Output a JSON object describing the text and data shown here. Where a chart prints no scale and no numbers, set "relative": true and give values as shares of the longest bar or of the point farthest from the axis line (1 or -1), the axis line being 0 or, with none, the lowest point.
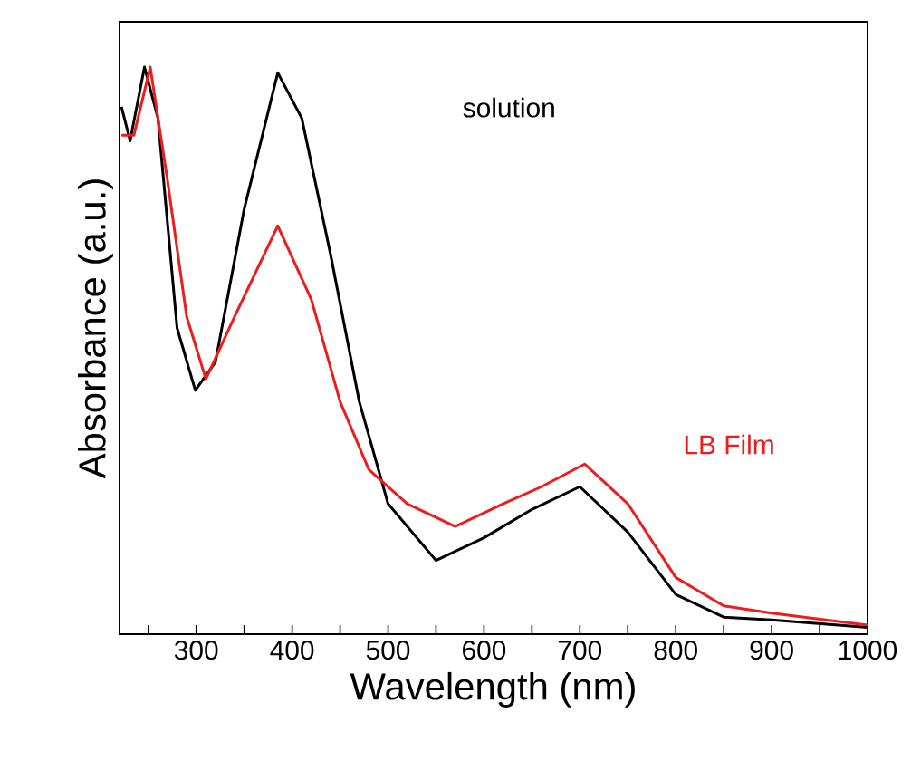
{
  "chart_data": {
    "type": "line",
    "relative": true,
    "xlabel": "Wavelength (nm)",
    "ylabel": "Absorbance (a.u.)",
    "xlim": [
      220,
      1000
    ],
    "xticks": [
      {
        "value": 250,
        "label": null
      },
      300,
      {
        "value": 350,
        "label": null
      },
      400,
      {
        "value": 450,
        "label": null
      },
      500,
      {
        "value": 550,
        "label": null
      },
      600,
      {
        "value": 650,
        "label": null
      },
      700,
      {
        "value": 750,
        "label": null
      },
      800,
      {
        "value": 850,
        "label": null
      },
      900,
      {
        "value": 950,
        "label": null
      },
      1000
    ],
    "series": [
      {
        "name": "solution",
        "color": "#000000",
        "x": [
          222,
          231,
          246,
          260,
          280,
          299,
          320,
          350,
          385,
          410,
          440,
          470,
          500,
          550,
          600,
          650,
          700,
          750,
          800,
          850,
          900,
          1000
        ],
        "values": [
          0.93,
          0.87,
          1.0,
          0.91,
          0.54,
          0.43,
          0.48,
          0.75,
          0.99,
          0.91,
          0.67,
          0.41,
          0.23,
          0.13,
          0.17,
          0.22,
          0.26,
          0.18,
          0.07,
          0.03,
          0.025,
          0.012
        ]
      },
      {
        "name": "LB Film",
        "color": "#ee1c1c",
        "x": [
          222,
          235,
          252,
          270,
          290,
          310,
          340,
          385,
          420,
          450,
          480,
          520,
          570,
          620,
          660,
          705,
          750,
          800,
          850,
          900,
          1000
        ],
        "values": [
          0.88,
          0.88,
          1.0,
          0.8,
          0.56,
          0.45,
          0.56,
          0.72,
          0.59,
          0.41,
          0.29,
          0.23,
          0.19,
          0.23,
          0.26,
          0.3,
          0.23,
          0.1,
          0.05,
          0.037,
          0.016
        ]
      }
    ]
  }
}
